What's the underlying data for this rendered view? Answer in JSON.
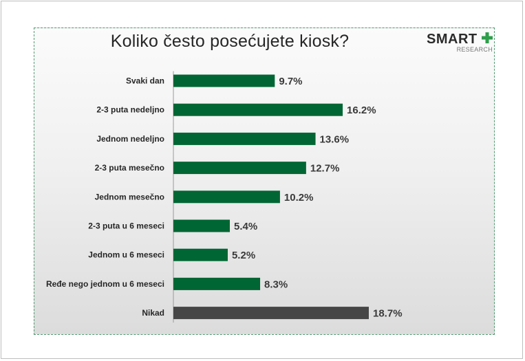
{
  "chart_data": {
    "type": "bar",
    "orientation": "horizontal",
    "title": "Koliko često posećujete kiosk?",
    "categories": [
      "Svaki dan",
      "2-3 puta nedeljno",
      "Jednom nedeljno",
      "2-3 puta mesečno",
      "Jednom mesečno",
      "2-3 puta u 6 meseci",
      "Jednom u 6 meseci",
      "Ređe nego jednom u 6 meseci",
      "Nikad"
    ],
    "values": [
      9.7,
      16.2,
      13.6,
      12.7,
      10.2,
      5.4,
      5.2,
      8.3,
      18.7
    ],
    "value_labels": [
      "9.7%",
      "16.2%",
      "13.6%",
      "12.7%",
      "10.2%",
      "5.4%",
      "5.2%",
      "8.3%",
      "18.7%"
    ],
    "unit": "%",
    "xlim": [
      0,
      18.7
    ],
    "bar_colors": [
      "#006633",
      "#006633",
      "#006633",
      "#006633",
      "#006633",
      "#006633",
      "#006633",
      "#006633",
      "#464646"
    ],
    "grid": false,
    "legend": false
  },
  "logo": {
    "name": "SMART",
    "subtitle": "RESEARCH",
    "plus_color": "#2e9e4a"
  },
  "colors": {
    "bar_primary": "#006633",
    "bar_highlight": "#464646",
    "panel_border": "#4e9a6e"
  }
}
